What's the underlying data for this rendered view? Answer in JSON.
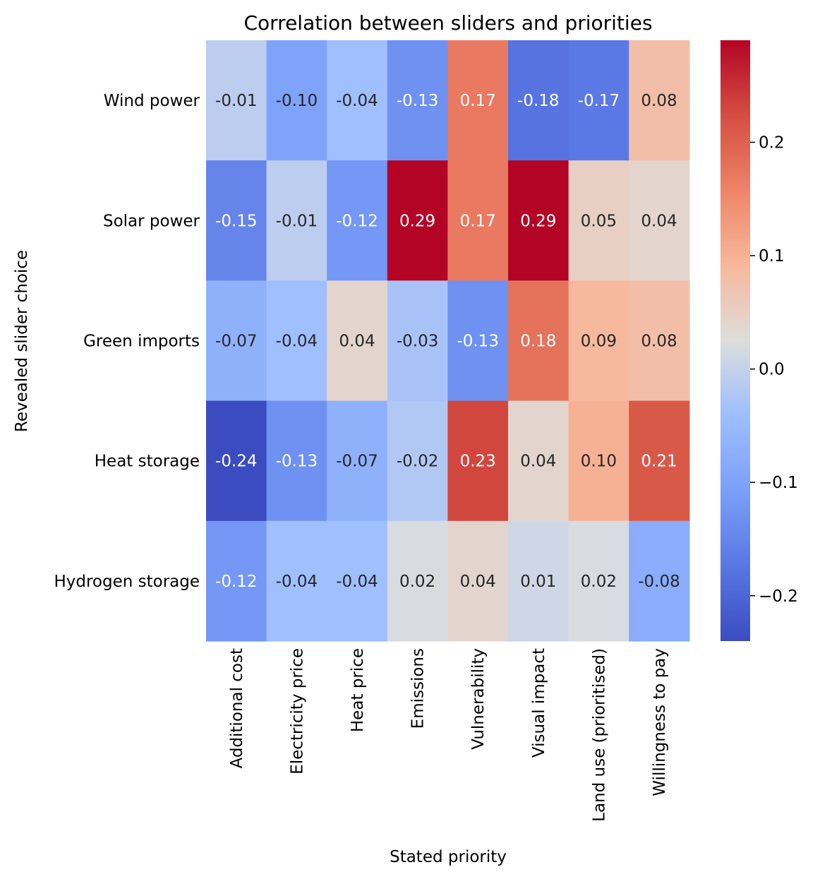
{
  "chart_data": {
    "type": "heatmap",
    "title": "Correlation between sliders and priorities",
    "xlabel": "Stated priority",
    "ylabel": "Revealed slider choice",
    "colormap": "coolwarm",
    "x_categories": [
      "Additional cost",
      "Electricity price",
      "Heat price",
      "Emissions",
      "Vulnerability",
      "Visual impact",
      "Land use (prioritised)",
      "Willingness to pay"
    ],
    "y_categories": [
      "Wind power",
      "Solar power",
      "Green imports",
      "Heat storage",
      "Hydrogen storage"
    ],
    "values": [
      [
        -0.01,
        -0.1,
        -0.04,
        -0.13,
        0.17,
        -0.18,
        -0.17,
        0.08
      ],
      [
        -0.15,
        -0.01,
        -0.12,
        0.29,
        0.17,
        0.29,
        0.05,
        0.04
      ],
      [
        -0.07,
        -0.04,
        0.04,
        -0.03,
        -0.13,
        0.18,
        0.09,
        0.08
      ],
      [
        -0.24,
        -0.13,
        -0.07,
        -0.02,
        0.23,
        0.04,
        0.1,
        0.21
      ],
      [
        -0.12,
        -0.04,
        -0.04,
        0.02,
        0.04,
        0.01,
        0.02,
        -0.08
      ]
    ],
    "value_labels": [
      [
        "-0.01",
        "-0.10",
        "-0.04",
        "-0.13",
        "0.17",
        "-0.18",
        "-0.17",
        "0.08"
      ],
      [
        "-0.15",
        "-0.01",
        "-0.12",
        "0.29",
        "0.17",
        "0.29",
        "0.05",
        "0.04"
      ],
      [
        "-0.07",
        "-0.04",
        "0.04",
        "-0.03",
        "-0.13",
        "0.18",
        "0.09",
        "0.08"
      ],
      [
        "-0.24",
        "-0.13",
        "-0.07",
        "-0.02",
        "0.23",
        "0.04",
        "0.10",
        "0.21"
      ],
      [
        "-0.12",
        "-0.04",
        "-0.04",
        "0.02",
        "0.04",
        "0.01",
        "0.02",
        "-0.08"
      ]
    ],
    "vmin": -0.24,
    "vmax": 0.29,
    "colorbar_ticks": [
      0.2,
      0.1,
      0.0,
      -0.1,
      -0.2
    ],
    "colorbar_tick_labels": [
      "0.2",
      "0.1",
      "0.0",
      "−0.1",
      "−0.2"
    ]
  }
}
